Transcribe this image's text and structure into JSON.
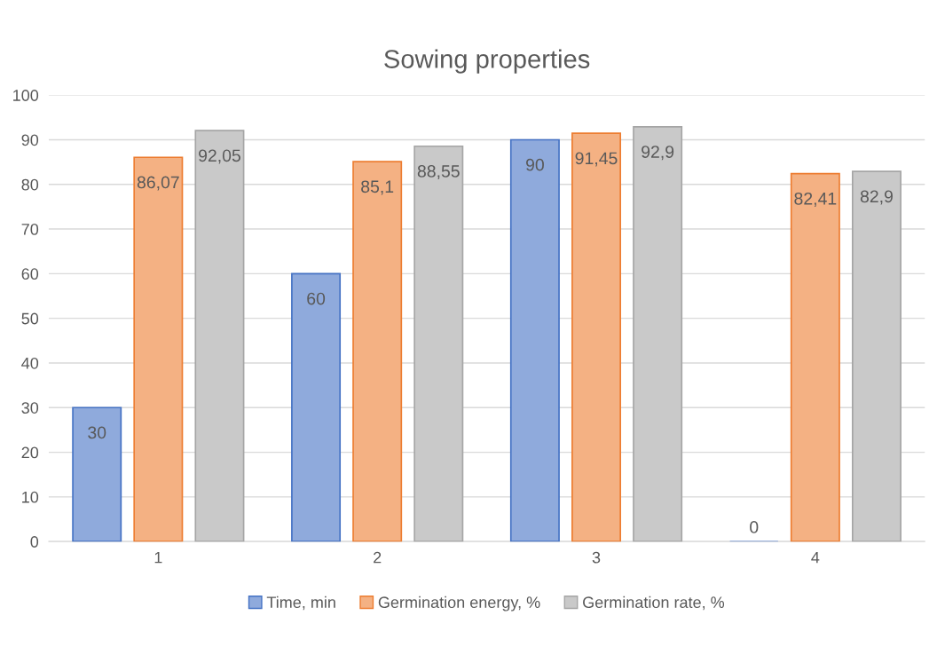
{
  "chart_data": {
    "type": "bar",
    "title": "Sowing properties",
    "categories": [
      "1",
      "2",
      "3",
      "4"
    ],
    "series": [
      {
        "name": "Time, min",
        "color": "#8faadc",
        "values": [
          30,
          60,
          90,
          0
        ],
        "value_labels": [
          "30",
          "60",
          "90",
          "0"
        ]
      },
      {
        "name": "Germination energy, %",
        "color": "#f4b183",
        "values": [
          86.07,
          85.1,
          91.45,
          82.41
        ],
        "value_labels": [
          "86,07",
          "85,1",
          "91,45",
          "82,41"
        ]
      },
      {
        "name": "Germination rate, %",
        "color": "#c9c9c9",
        "values": [
          92.05,
          88.55,
          92.9,
          82.9
        ],
        "value_labels": [
          "92,05",
          "88,55",
          "92,9",
          "82,9"
        ]
      }
    ],
    "ylim": [
      0,
      100
    ],
    "yticks": [
      0,
      10,
      20,
      30,
      40,
      50,
      60,
      70,
      80,
      90,
      100
    ],
    "grid": "y",
    "legend": "bottom"
  }
}
